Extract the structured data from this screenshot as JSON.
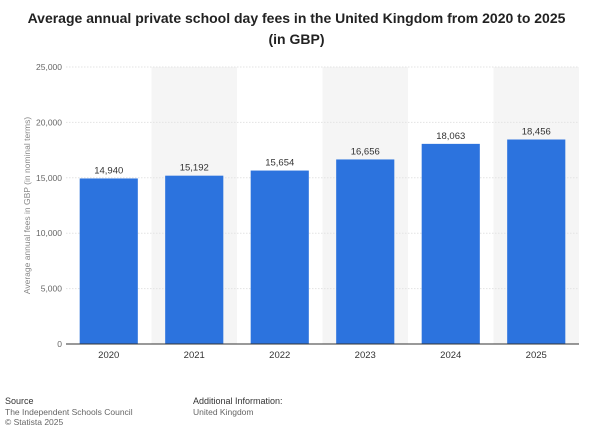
{
  "chart_data": {
    "type": "bar",
    "title": "Average annual private school day fees in the United Kingdom from 2020 to 2025 (in GBP)",
    "ylabel": "Average annual fees in GBP (in nominal terms)",
    "xlabel": "",
    "categories": [
      "2020",
      "2021",
      "2022",
      "2023",
      "2024",
      "2025"
    ],
    "values": [
      14940,
      15192,
      15654,
      16656,
      18063,
      18456
    ],
    "value_labels": [
      "14,940",
      "15,192",
      "15,654",
      "16,656",
      "18,063",
      "18,456"
    ],
    "ylim": [
      0,
      25000
    ],
    "yticks": [
      0,
      5000,
      10000,
      15000,
      20000,
      25000
    ],
    "ytick_labels": [
      "0",
      "5,000",
      "10,000",
      "15,000",
      "20,000",
      "25,000"
    ],
    "grid": true,
    "bar_color": "#2c73de",
    "band_color": "#f5f5f5"
  },
  "footer": {
    "source_heading": "Source",
    "source_line1": "The Independent Schools Council",
    "source_line2": "© Statista 2025",
    "info_heading": "Additional Information:",
    "info_line1": "United Kingdom"
  }
}
